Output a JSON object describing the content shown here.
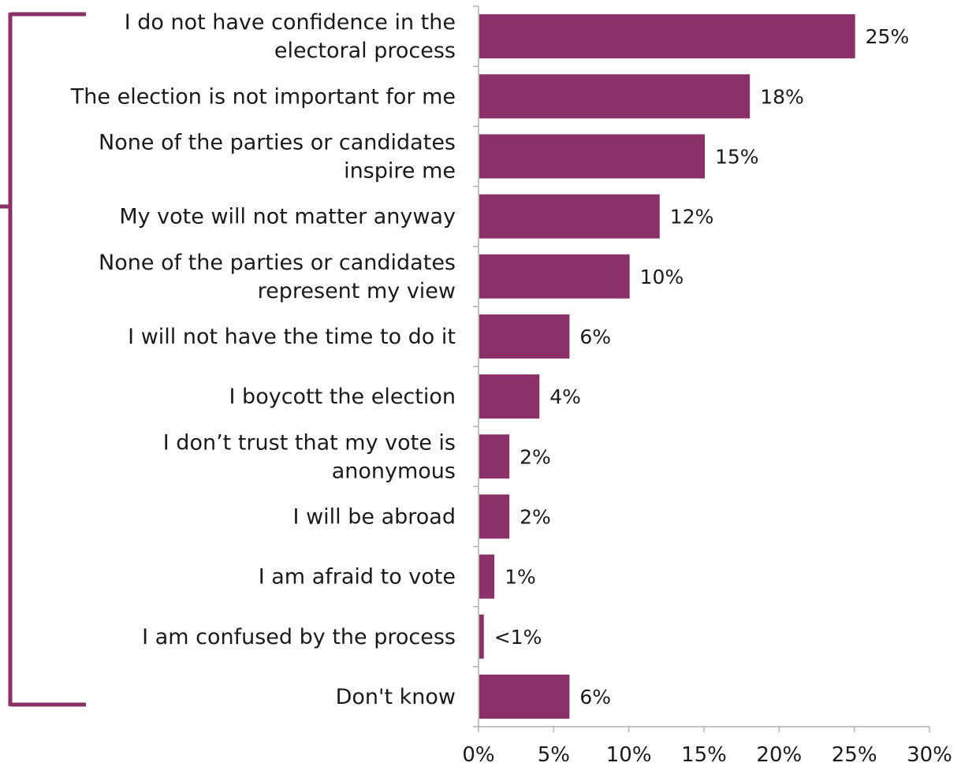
{
  "chart_data": {
    "type": "bar",
    "orientation": "horizontal",
    "categories": [
      "I do not have confidence in the electoral process",
      "The election is not important for me",
      "None of the parties or candidates inspire me",
      "My vote will not matter anyway",
      "None of the parties or candidates represent my view",
      "I will not have the time to do it",
      "I boycott the election",
      "I don’t trust that my vote is anonymous",
      "I will be abroad",
      "I am afraid to vote",
      "I am confused by the process",
      "Don't know"
    ],
    "category_lines": [
      [
        "I do not have confidence in the",
        "electoral process"
      ],
      [
        "The election is not important for me"
      ],
      [
        "None of the parties or candidates",
        "inspire me"
      ],
      [
        "My vote will not matter anyway"
      ],
      [
        "None of the parties or candidates",
        "represent my view"
      ],
      [
        "I will not have the time to do it"
      ],
      [
        "I boycott the election"
      ],
      [
        "I don’t trust that my vote is",
        "anonymous"
      ],
      [
        "I will be abroad"
      ],
      [
        "I am afraid to vote"
      ],
      [
        "I am confused by the process"
      ],
      [
        "Don't know"
      ]
    ],
    "values": [
      25,
      18,
      15,
      12,
      10,
      6,
      4,
      2,
      2,
      1,
      0.3,
      6
    ],
    "data_labels": [
      "25%",
      "18%",
      "15%",
      "12%",
      "10%",
      "6%",
      "4%",
      "2%",
      "2%",
      "1%",
      "<1%",
      "6%"
    ],
    "xlim": [
      0,
      30
    ],
    "xticks": [
      0,
      5,
      10,
      15,
      20,
      25,
      30
    ],
    "xtick_labels": [
      "0%",
      "5%",
      "10%",
      "15%",
      "20%",
      "25%",
      "30%"
    ],
    "bar_color": "#8b3068",
    "bracket_color": "#8b3068",
    "axis_color": "#b0b0b0",
    "grid": false,
    "legend": "none"
  }
}
